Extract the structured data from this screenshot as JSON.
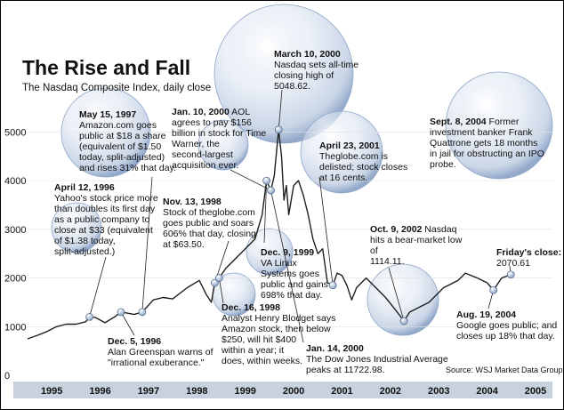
{
  "chart_data": {
    "type": "line",
    "title": "The Rise and Fall",
    "subtitle": "The Nasdaq Composite Index, daily close",
    "source": "Source: WSJ Market Data Group",
    "y_ticks": [
      "5000",
      "4000",
      "3000",
      "2000",
      "1000",
      "0"
    ],
    "y_tick_values": [
      5000,
      4000,
      3000,
      2000,
      1000,
      0
    ],
    "ylim": [
      0,
      5300
    ],
    "xlim": [
      1995.0,
      2005.85
    ],
    "x_ticks": [
      "1995",
      "1996",
      "1997",
      "1998",
      "1999",
      "2000",
      "2001",
      "2002",
      "2003",
      "2004",
      "2005"
    ],
    "series": [
      {
        "name": "Nasdaq Composite Index",
        "x": [
          1995.0,
          1995.2,
          1995.4,
          1995.6,
          1995.8,
          1996.0,
          1996.2,
          1996.28,
          1996.4,
          1996.6,
          1996.8,
          1996.93,
          1997.0,
          1997.2,
          1997.37,
          1997.6,
          1997.8,
          1998.0,
          1998.3,
          1998.55,
          1998.7,
          1998.8,
          1998.87,
          1998.96,
          1999.1,
          1999.3,
          1999.5,
          1999.7,
          1999.85,
          1999.94,
          2000.03,
          2000.1,
          2000.19,
          2000.25,
          2000.3,
          2000.35,
          2000.4,
          2000.5,
          2000.6,
          2000.7,
          2000.8,
          2000.9,
          2001.0,
          2001.1,
          2001.2,
          2001.31,
          2001.4,
          2001.5,
          2001.6,
          2001.7,
          2001.8,
          2001.9,
          2002.0,
          2002.2,
          2002.4,
          2002.6,
          2002.78,
          2002.9,
          2003.0,
          2003.3,
          2003.6,
          2003.9,
          2004.05,
          2004.3,
          2004.5,
          2004.63,
          2004.8,
          2004.99
        ],
        "values": [
          750,
          820,
          900,
          1000,
          1050,
          1050,
          1100,
          1200,
          1190,
          1080,
          1200,
          1300,
          1290,
          1250,
          1300,
          1550,
          1600,
          1570,
          1800,
          1950,
          1650,
          1500,
          1900,
          2000,
          2200,
          2400,
          2600,
          2800,
          3300,
          4000,
          3800,
          4100,
          5048,
          4500,
          3600,
          3900,
          3300,
          3900,
          4000,
          3700,
          3300,
          2800,
          2500,
          2600,
          1900,
          1850,
          2100,
          2050,
          1850,
          1550,
          1800,
          1900,
          2000,
          1800,
          1600,
          1350,
          1114,
          1300,
          1350,
          1500,
          1800,
          1950,
          2100,
          2000,
          1900,
          1750,
          2000,
          2070
        ]
      }
    ],
    "markers": [
      {
        "x": 1996.28,
        "value": 1200
      },
      {
        "x": 1996.93,
        "value": 1300
      },
      {
        "x": 1997.37,
        "value": 1300
      },
      {
        "x": 1998.87,
        "value": 1900
      },
      {
        "x": 1998.96,
        "value": 2000
      },
      {
        "x": 1999.94,
        "value": 4000
      },
      {
        "x": 2000.03,
        "value": 3800
      },
      {
        "x": 2000.19,
        "value": 5048
      },
      {
        "x": 2001.31,
        "value": 1850
      },
      {
        "x": 2002.78,
        "value": 1114
      },
      {
        "x": 2004.63,
        "value": 1750
      },
      {
        "x": 2004.99,
        "value": 2070
      }
    ],
    "annotations": [
      {
        "head": "March 10, 2000",
        "lines": [
          "Nasdaq sets all-time",
          "closing high of",
          "5048.62."
        ]
      },
      {
        "head": "May 15, 1997",
        "lines": [
          "Amazon.com goes",
          "public at $18 a share",
          "(equivalent of $1.50",
          "today, split-adjusted)",
          "and rises 31% that day."
        ]
      },
      {
        "head": "Jan. 10, 2000",
        "head_rest": "  AOL",
        "lines": [
          "agrees to pay $156",
          "billion in stock for Time",
          "Warner, the",
          "second-largest",
          "acquisition ever."
        ]
      },
      {
        "head": "Sept. 8, 2004",
        "head_rest": " Former",
        "lines": [
          "investment banker Frank",
          "Quattrone gets 18 months",
          "in jail for obstructing an IPO",
          "probe."
        ]
      },
      {
        "head": "April 23, 2001",
        "lines": [
          "Theglobe.com is",
          "delisted; stock closes",
          "at 16 cents."
        ]
      },
      {
        "head": "April 12, 1996",
        "lines": [
          "Yahoo's stock price more",
          "than doubles its first day",
          "as a public company to",
          "close at $33 (equivalent",
          "of $1.38 today,",
          "split-adjusted.)"
        ]
      },
      {
        "head": "Nov. 13, 1998",
        "lines": [
          "Stock of theglobe.com",
          "goes public and soars",
          "606% that day, closing",
          "at $63.50."
        ]
      },
      {
        "head": "Oct. 9, 2002",
        "head_rest": "  Nasdaq",
        "lines": [
          "hits a bear-market low",
          "of",
          "1114.11."
        ]
      },
      {
        "head": "Friday's close:",
        "lines": [
          "2070.61"
        ]
      },
      {
        "head": "Dec. 9, 1999",
        "lines": [
          "VA Linux",
          "Systems  goes",
          "public and gains",
          "698% that day."
        ]
      },
      {
        "head": "Dec. 16, 1998",
        "lines": [
          "Analyst Henry Blodget says",
          "Amazon stock, then below",
          "$250, will hit $400",
          "within a year; it",
          "does, within weeks."
        ]
      },
      {
        "head": "Dec. 5, 1996",
        "lines": [
          "Alan Greenspan warns of",
          "\"irrational exuberance.\""
        ]
      },
      {
        "head": "Aug. 19, 2004",
        "lines": [
          "Google goes public; and",
          "closes up 18% that day."
        ]
      },
      {
        "head": "Jan. 14, 2000",
        "lines": [
          "The Dow Jones Industrial Average",
          "peaks at 11722.98."
        ]
      }
    ]
  },
  "colors": {
    "line": "#1f1f1f",
    "bubble": "#9fb4d3",
    "bubble_edge": "#6f8db9",
    "axis_band": "#c8d2df",
    "grid": "#e2e2e2"
  }
}
